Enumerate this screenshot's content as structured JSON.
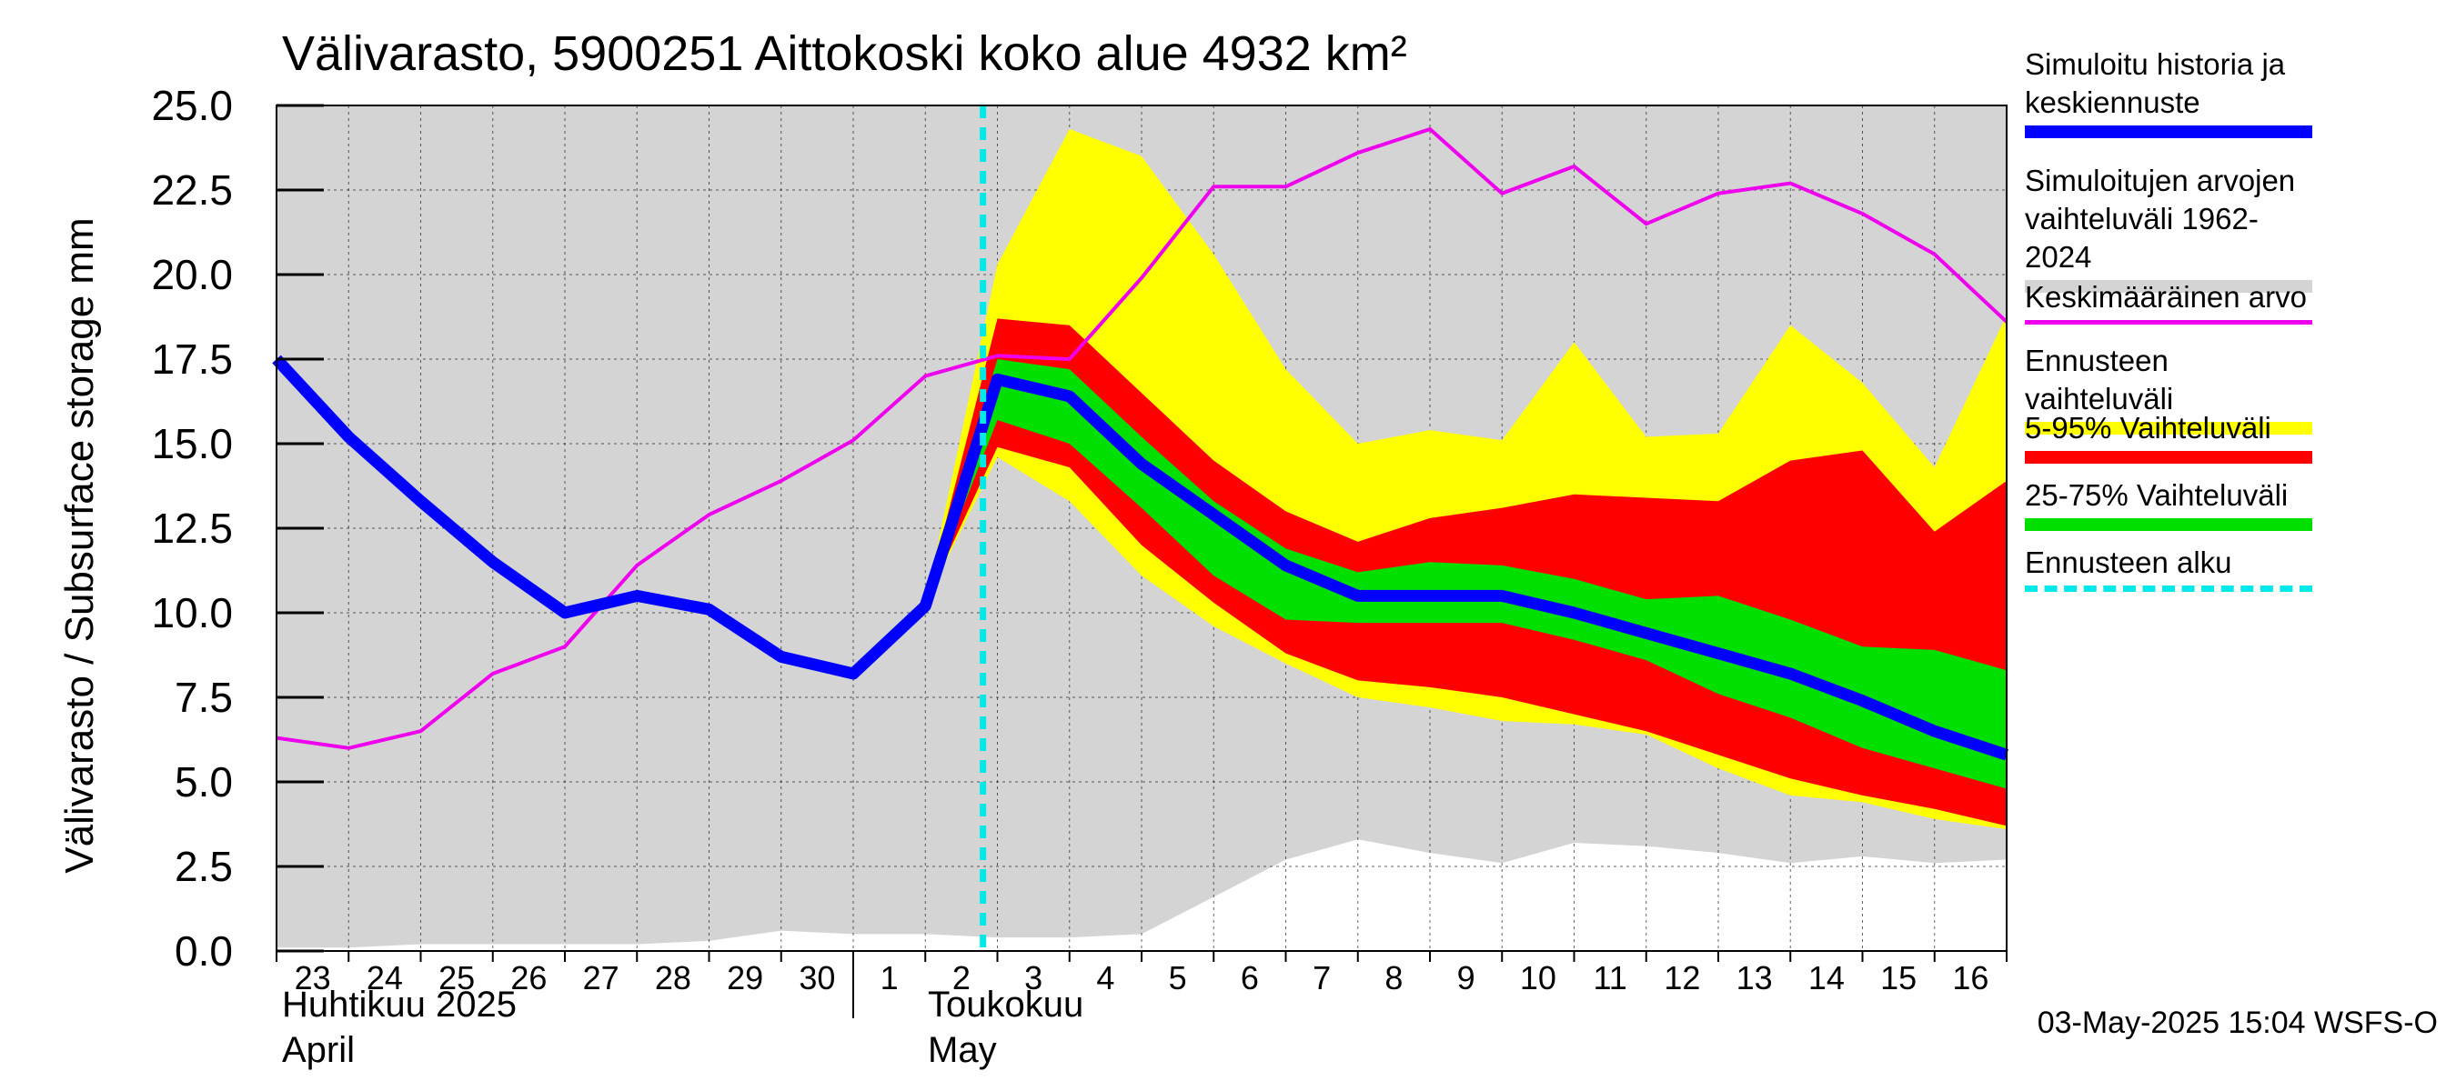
{
  "chart_data": {
    "type": "area",
    "title": "Välivarasto, 5900251 Aittokoski koko alue 4932 km²",
    "ylabel": "Välivarasto / Subsurface storage  mm",
    "ylim": [
      0,
      25
    ],
    "yticks": [
      "0.0",
      "2.5",
      "5.0",
      "7.5",
      "10.0",
      "12.5",
      "15.0",
      "17.5",
      "20.0",
      "22.5",
      "25.0"
    ],
    "x_tick_labels": [
      "23",
      "24",
      "25",
      "26",
      "27",
      "28",
      "29",
      "30",
      "1",
      "2",
      "3",
      "4",
      "5",
      "6",
      "7",
      "8",
      "9",
      "10",
      "11",
      "12",
      "13",
      "14",
      "15",
      "16"
    ],
    "month_labels": [
      {
        "fi": "Huhtikuu  2025",
        "en": "April"
      },
      {
        "fi": "Toukokuu",
        "en": "May"
      }
    ],
    "forecast_start_day": 9.8,
    "grid": true,
    "legend_position": "right",
    "colors": {
      "history_range": "#d4d4d4",
      "forecast_range": "#ffff00",
      "p5_95": "#ff0000",
      "p25_75": "#00e000",
      "median": "#0000ff",
      "mean": "#ee00ee",
      "forecast_start": "#00e8e8"
    },
    "series": {
      "history_range": {
        "day": [
          0,
          1,
          2,
          3,
          4,
          5,
          6,
          7,
          8,
          9,
          10,
          11,
          12,
          13,
          14,
          15,
          16,
          17,
          18,
          19,
          20,
          21,
          22,
          23,
          24
        ],
        "upper": [
          25,
          25,
          25,
          25,
          25,
          25,
          25,
          25,
          25,
          25,
          25,
          25,
          25,
          25,
          25,
          25,
          25,
          25,
          25,
          25,
          25,
          25,
          25,
          25,
          25
        ],
        "lower": [
          0.1,
          0.1,
          0.2,
          0.2,
          0.2,
          0.2,
          0.3,
          0.6,
          0.5,
          0.5,
          0.4,
          0.4,
          0.5,
          1.6,
          2.7,
          3.3,
          2.9,
          2.6,
          3.2,
          3.1,
          2.9,
          2.6,
          2.8,
          2.6,
          2.7
        ]
      },
      "forecast_range": {
        "day": [
          9,
          10,
          11,
          12,
          13,
          14,
          15,
          16,
          17,
          18,
          19,
          20,
          21,
          22,
          23,
          24
        ],
        "upper": [
          10.3,
          20.3,
          24.3,
          23.5,
          20.6,
          17.2,
          15.0,
          15.4,
          15.1,
          18.0,
          15.2,
          15.3,
          18.5,
          16.8,
          14.3,
          18.8
        ],
        "lower": [
          10.3,
          14.6,
          13.3,
          11.1,
          9.6,
          8.5,
          7.5,
          7.2,
          6.8,
          6.7,
          6.4,
          5.4,
          4.6,
          4.4,
          3.9,
          3.6
        ]
      },
      "p5_95": {
        "day": [
          9,
          10,
          11,
          12,
          13,
          14,
          15,
          16,
          17,
          18,
          19,
          20,
          21,
          22,
          23,
          24
        ],
        "upper": [
          10.3,
          18.7,
          18.5,
          16.5,
          14.5,
          13.0,
          12.1,
          12.8,
          13.1,
          13.5,
          13.4,
          13.3,
          14.5,
          14.8,
          12.4,
          13.9
        ],
        "lower": [
          10.3,
          14.9,
          14.3,
          12.0,
          10.3,
          8.8,
          8.0,
          7.8,
          7.5,
          7.0,
          6.5,
          5.8,
          5.1,
          4.6,
          4.2,
          3.7
        ]
      },
      "p25_75": {
        "day": [
          9,
          10,
          11,
          12,
          13,
          14,
          15,
          16,
          17,
          18,
          19,
          20,
          21,
          22,
          23,
          24
        ],
        "upper": [
          10.3,
          17.5,
          17.2,
          15.2,
          13.3,
          11.9,
          11.2,
          11.5,
          11.4,
          11.0,
          10.4,
          10.5,
          9.8,
          9.0,
          8.9,
          8.3
        ],
        "lower": [
          10.3,
          15.7,
          15.0,
          13.1,
          11.1,
          9.8,
          9.7,
          9.7,
          9.7,
          9.2,
          8.6,
          7.6,
          6.9,
          6.0,
          5.4,
          4.8
        ]
      },
      "median": {
        "name": "Simuloitu historia ja keskiennuste",
        "day": [
          0,
          1,
          2,
          3,
          4,
          5,
          6,
          7,
          8,
          9,
          10,
          11,
          12,
          13,
          14,
          15,
          16,
          17,
          18,
          19,
          20,
          21,
          22,
          23,
          24
        ],
        "values": [
          17.5,
          15.2,
          13.3,
          11.5,
          10.0,
          10.5,
          10.1,
          8.7,
          8.2,
          10.2,
          16.9,
          16.4,
          14.4,
          12.9,
          11.4,
          10.5,
          10.5,
          10.5,
          10.0,
          9.4,
          8.8,
          8.2,
          7.4,
          6.5,
          5.8
        ]
      },
      "mean": {
        "name": "Keskimääräinen arvo",
        "day": [
          0,
          1,
          2,
          3,
          4,
          5,
          6,
          7,
          8,
          9,
          10,
          11,
          12,
          13,
          14,
          15,
          16,
          17,
          18,
          19,
          20,
          21,
          22,
          23,
          24
        ],
        "values": [
          6.3,
          6.0,
          6.5,
          8.2,
          9.0,
          11.4,
          12.9,
          13.9,
          15.1,
          17.0,
          17.6,
          17.5,
          19.9,
          22.6,
          22.6,
          23.6,
          24.3,
          22.4,
          23.2,
          21.5,
          22.4,
          22.7,
          21.8,
          20.6,
          18.6
        ]
      }
    }
  },
  "legend": [
    {
      "label": "Simuloitu historia ja keskiennuste",
      "color": "#0000ff",
      "style": "solid-thick"
    },
    {
      "label": "Simuloitujen arvojen vaihteluväli 1962-2024",
      "color": "#d4d4d4",
      "style": "solid-thick"
    },
    {
      "label": "Keskimääräinen arvo",
      "color": "#ee00ee",
      "style": "solid-thin"
    },
    {
      "label": "Ennusteen vaihteluväli",
      "color": "#ffff00",
      "style": "solid-thick"
    },
    {
      "label": "5-95% Vaihteluväli",
      "color": "#ff0000",
      "style": "solid-thick"
    },
    {
      "label": "25-75% Vaihteluväli",
      "color": "#00e000",
      "style": "solid-thick"
    },
    {
      "label": "Ennusteen alku",
      "color": "#00e8e8",
      "style": "dashed"
    }
  ],
  "footer": "03-May-2025 15:04 WSFS-O"
}
